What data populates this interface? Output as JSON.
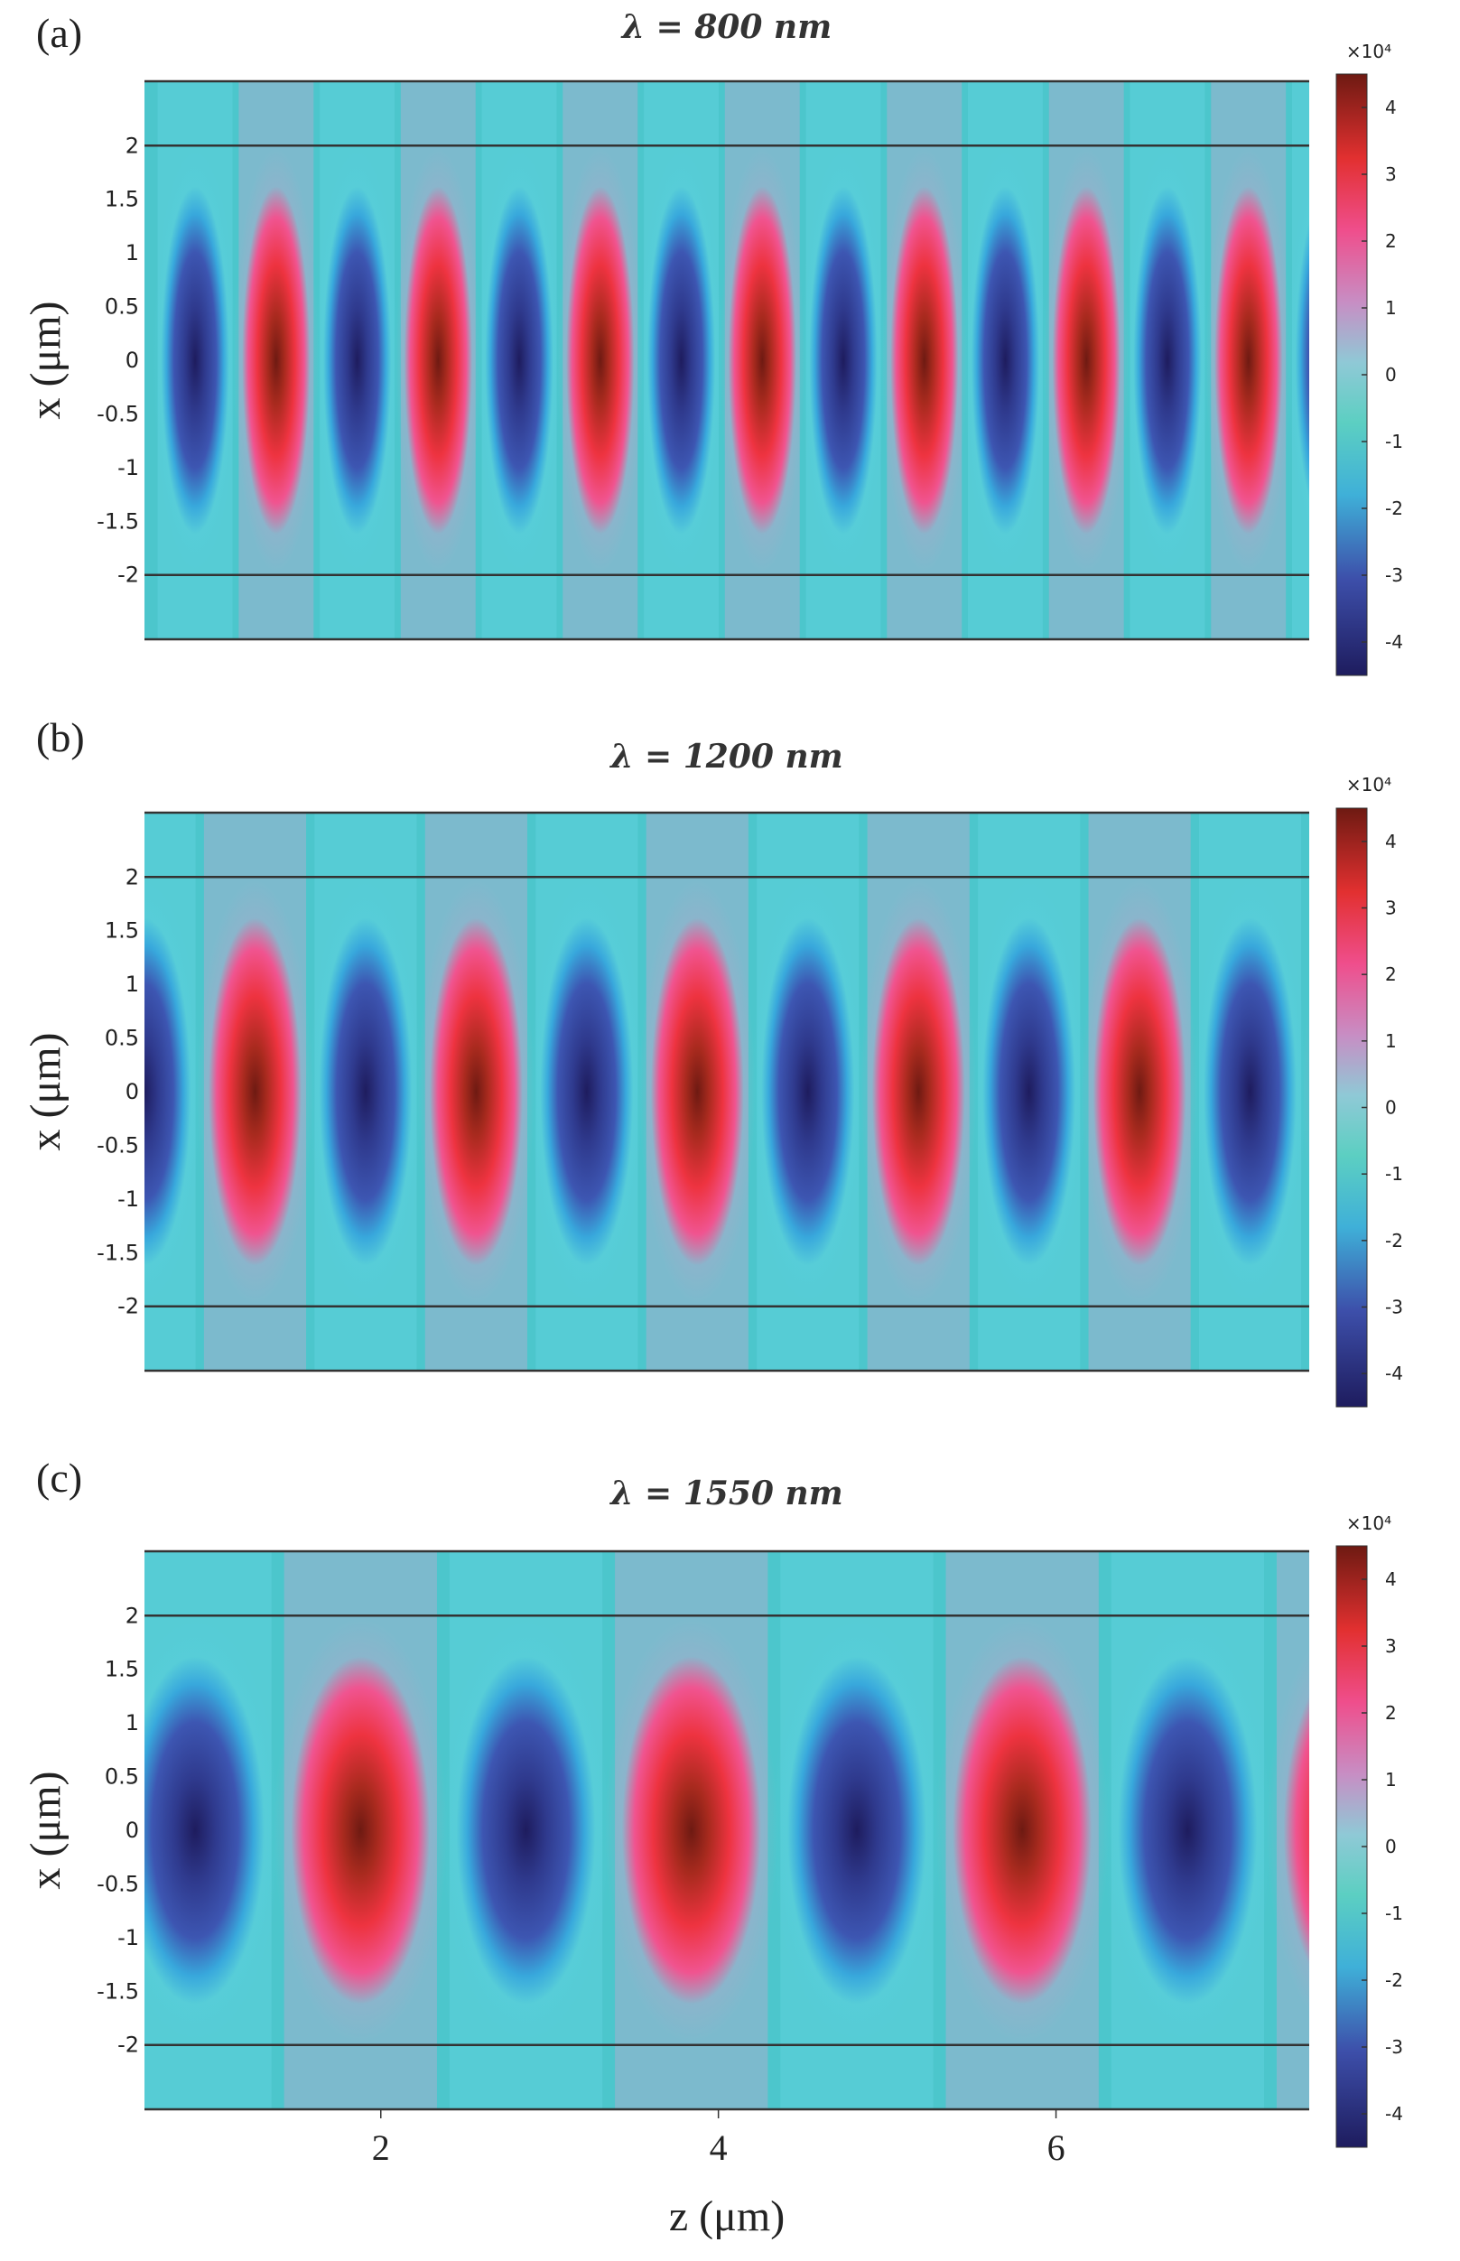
{
  "chart_data": [
    {
      "type": "heatmap",
      "panel_label": "(a)",
      "title": "λ = 800 nm",
      "wavelength_nm": 800,
      "xlabel": "z (μm)",
      "ylabel": "x (μm)",
      "x_range": [
        0.6,
        7.5
      ],
      "y_range": [
        -2.6,
        2.6
      ],
      "y_ticks": [
        "2",
        "1.5",
        "1",
        "0.5",
        "0",
        "-0.5",
        "-1",
        "-1.5",
        "-2"
      ],
      "x_ticks": [],
      "field_lobes_first_sign": -1,
      "lobe_spacing_um": 0.48,
      "first_lobe_center_um": 0.9,
      "core_boundaries_um": [
        -2,
        2
      ],
      "colorbar": {
        "multiplier": "×10⁴",
        "ticks": [
          "4",
          "3",
          "2",
          "1",
          "0",
          "-1",
          "-2",
          "-3",
          "-4"
        ],
        "range": [
          -4.5,
          4.5
        ]
      }
    },
    {
      "type": "heatmap",
      "panel_label": "(b)",
      "title": "λ = 1200 nm",
      "wavelength_nm": 1200,
      "xlabel": "z (μm)",
      "ylabel": "x (μm)",
      "x_range": [
        0.6,
        7.5
      ],
      "y_range": [
        -2.6,
        2.6
      ],
      "y_ticks": [
        "2",
        "1.5",
        "1",
        "0.5",
        "0",
        "-0.5",
        "-1",
        "-1.5",
        "-2"
      ],
      "x_ticks": [],
      "field_lobes_first_sign": -1,
      "lobe_spacing_um": 0.655,
      "first_lobe_center_um": 0.6,
      "core_boundaries_um": [
        -2,
        2
      ],
      "colorbar": {
        "multiplier": "×10⁴",
        "ticks": [
          "4",
          "3",
          "2",
          "1",
          "0",
          "-1",
          "-2",
          "-3",
          "-4"
        ],
        "range": [
          -4.5,
          4.5
        ]
      }
    },
    {
      "type": "heatmap",
      "panel_label": "(c)",
      "title": "λ = 1550 nm",
      "wavelength_nm": 1550,
      "xlabel": "z (μm)",
      "ylabel": "x (μm)",
      "x_range": [
        0.6,
        7.5
      ],
      "y_range": [
        -2.6,
        2.6
      ],
      "y_ticks": [
        "2",
        "1.5",
        "1",
        "0.5",
        "0",
        "-0.5",
        "-1",
        "-1.5",
        "-2"
      ],
      "x_ticks": [
        "2",
        "4",
        "6"
      ],
      "field_lobes_first_sign": -1,
      "lobe_spacing_um": 0.98,
      "first_lobe_center_um": 0.9,
      "core_boundaries_um": [
        -2,
        2
      ],
      "colorbar": {
        "multiplier": "×10⁴",
        "ticks": [
          "4",
          "3",
          "2",
          "1",
          "0",
          "-1",
          "-2",
          "-3",
          "-4"
        ],
        "range": [
          -4.5,
          4.5
        ]
      }
    }
  ],
  "colors": {
    "background_field": "#4cc6cc",
    "positive_peak": "#6e1a12",
    "positive_mid": "#ee3344",
    "negative_peak": "#1e1c5e",
    "negative_mid": "#3d4faa",
    "zero": "#8fc9d6",
    "boundary_line": "#333333"
  }
}
